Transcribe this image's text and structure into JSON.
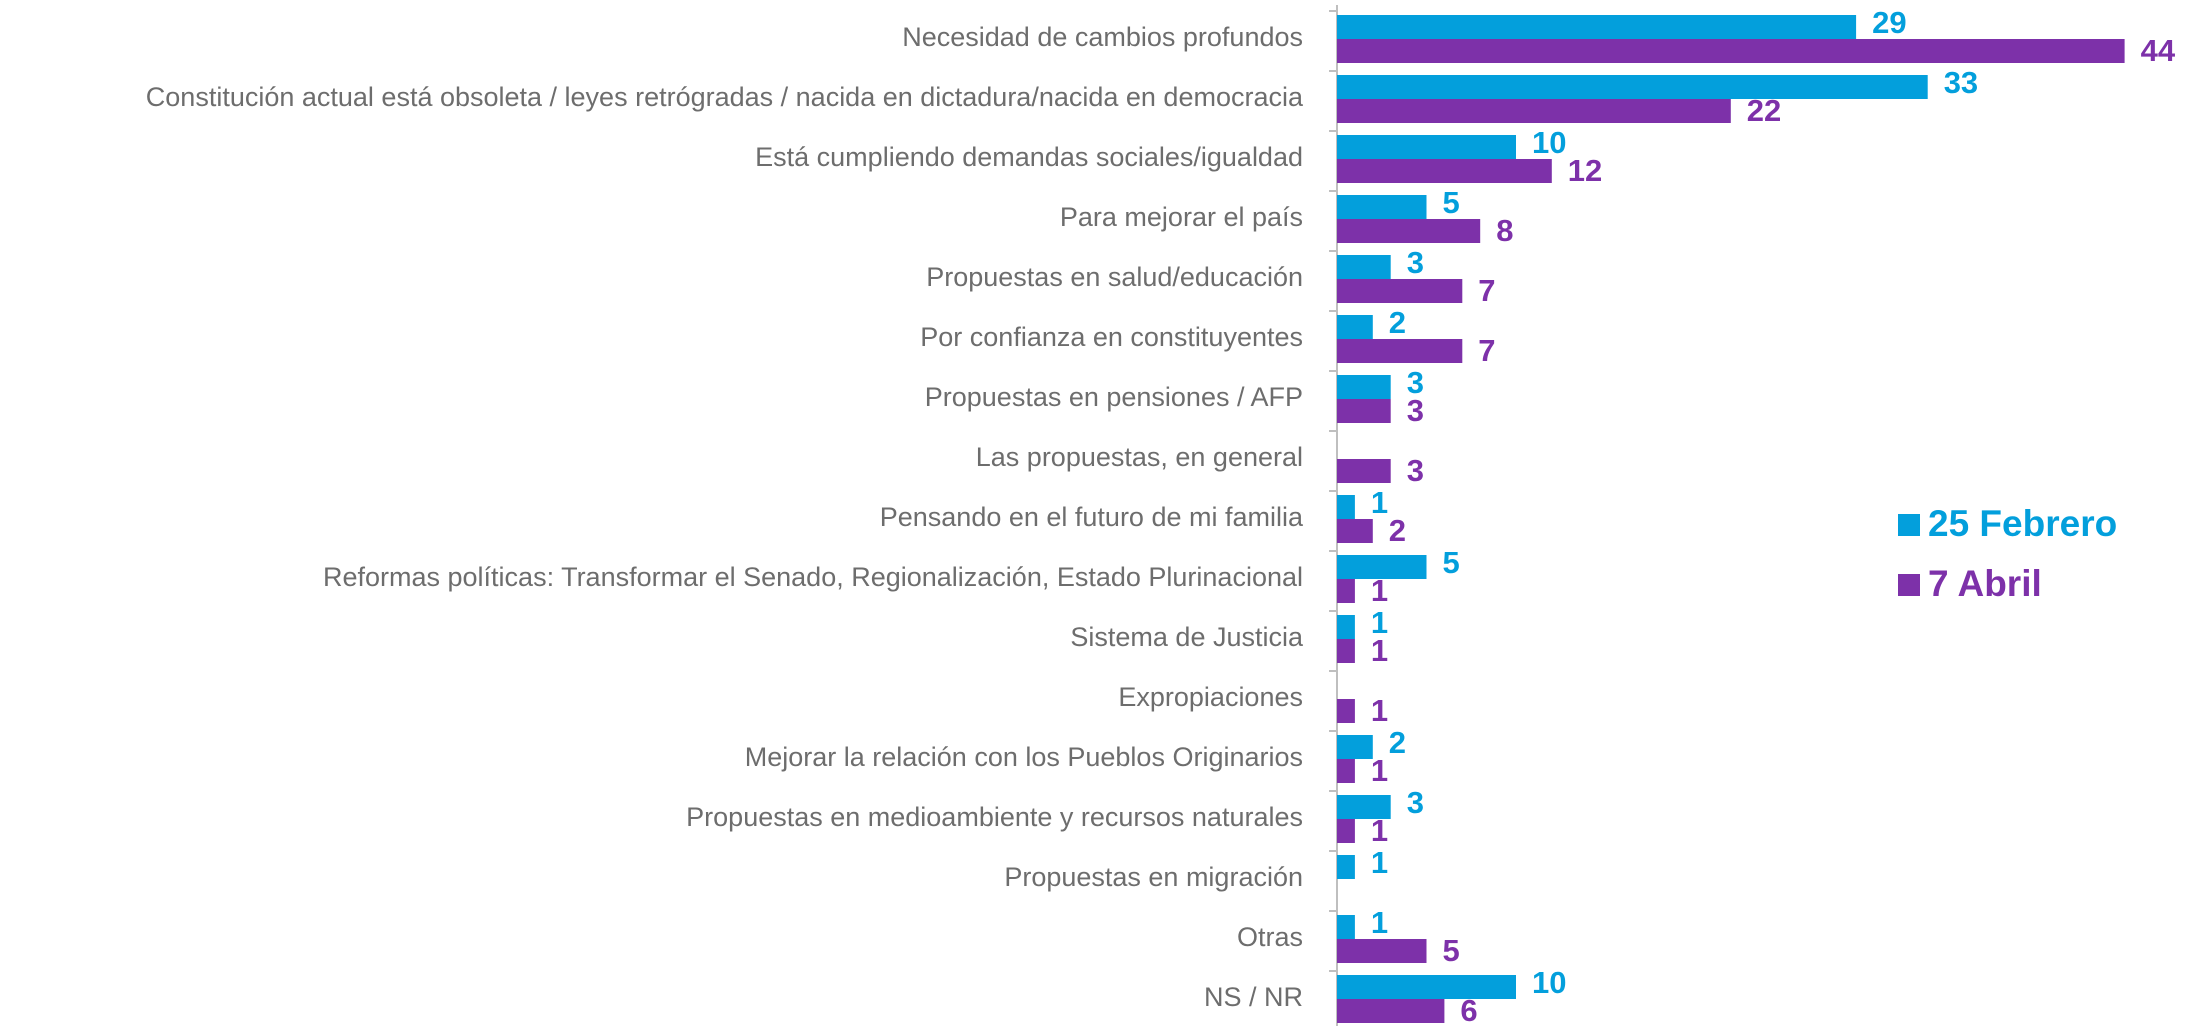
{
  "chart_data": {
    "type": "hbar",
    "categories": [
      "Necesidad de cambios profundos",
      "Constitución actual está obsoleta / leyes retrógradas / nacida en dictadura/nacida en democracia",
      "Está cumpliendo demandas sociales/igualdad",
      "Para mejorar el país",
      "Propuestas en salud/educación",
      "Por confianza en constituyentes",
      "Propuestas en pensiones / AFP",
      "Las propuestas, en general",
      "Pensando en el futuro de mi familia",
      "Reformas políticas: Transformar el Senado, Regionalización, Estado Plurinacional",
      "Sistema de Justicia",
      "Expropiaciones",
      "Mejorar la relación con los Pueblos Originarios",
      "Propuestas en medioambiente y recursos naturales",
      "Propuestas en migración",
      "Otras",
      "NS / NR"
    ],
    "series": [
      {
        "name": "25 Febrero",
        "color": "#039fdc",
        "values": [
          29,
          33,
          10,
          5,
          3,
          2,
          3,
          null,
          1,
          5,
          1,
          null,
          2,
          3,
          1,
          1,
          10
        ]
      },
      {
        "name": "7 Abril",
        "color": "#7d31a9",
        "values": [
          44,
          22,
          12,
          8,
          7,
          7,
          3,
          3,
          2,
          1,
          1,
          1,
          1,
          1,
          null,
          5,
          6
        ]
      }
    ],
    "legend": "right"
  }
}
